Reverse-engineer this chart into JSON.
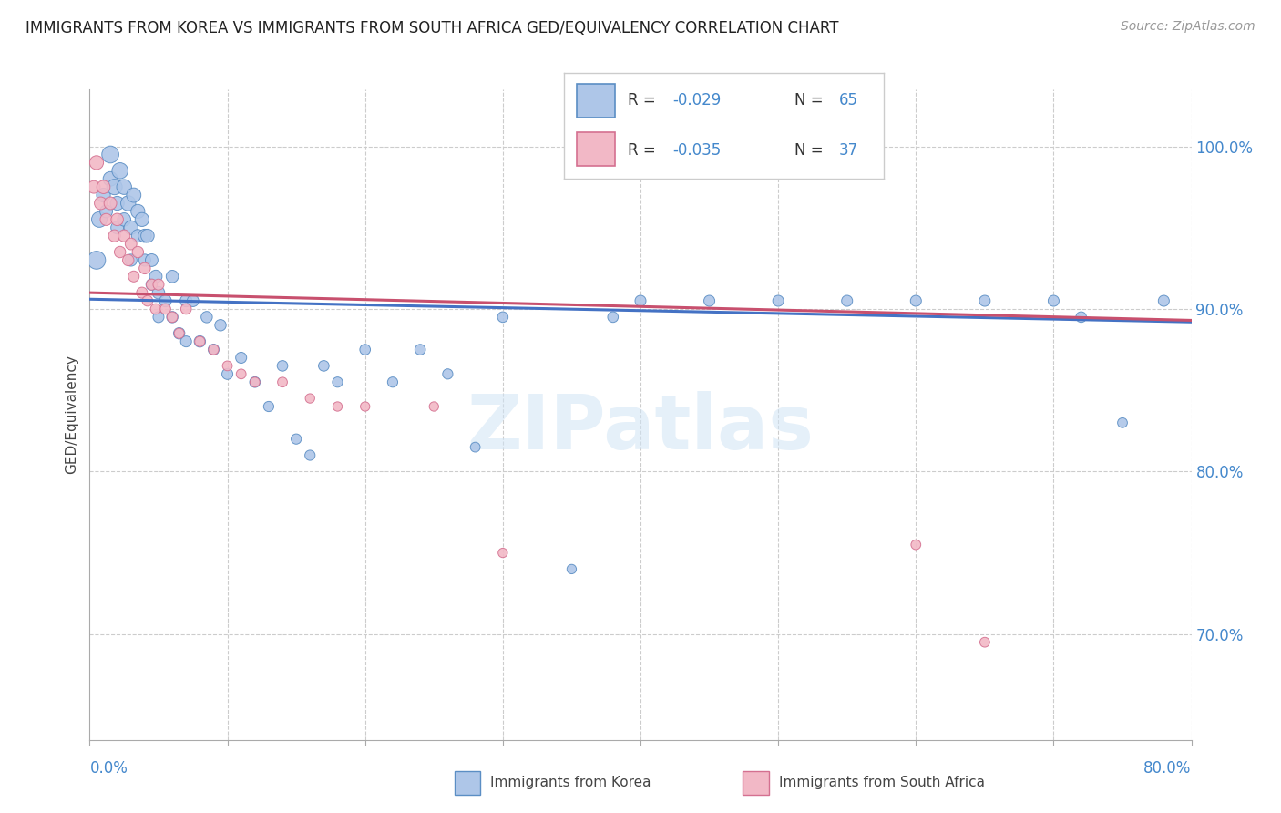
{
  "title": "IMMIGRANTS FROM KOREA VS IMMIGRANTS FROM SOUTH AFRICA GED/EQUIVALENCY CORRELATION CHART",
  "source": "Source: ZipAtlas.com",
  "ylabel": "GED/Equivalency",
  "color_korea": "#aec6e8",
  "color_korea_edge": "#5b8ec4",
  "color_korea_line": "#4472c4",
  "color_sa": "#f2b8c6",
  "color_sa_edge": "#d47090",
  "color_sa_line": "#c8506e",
  "title_color": "#222222",
  "source_color": "#999999",
  "axis_label_color": "#4488cc",
  "xlim": [
    0.0,
    0.8
  ],
  "ylim": [
    0.635,
    1.035
  ],
  "yticks": [
    0.7,
    0.8,
    0.9,
    1.0
  ],
  "xtick_positions": [
    0.0,
    0.1,
    0.2,
    0.3,
    0.4,
    0.5,
    0.6,
    0.7,
    0.8
  ],
  "grid_color": "#cccccc",
  "background_color": "#ffffff",
  "watermark": "ZIPatlas",
  "legend_r1": "-0.029",
  "legend_n1": "65",
  "legend_r2": "-0.035",
  "legend_n2": "37",
  "korea_trend_x": [
    0.0,
    0.8
  ],
  "korea_trend_y": [
    0.906,
    0.892
  ],
  "sa_trend_x": [
    0.0,
    0.8
  ],
  "sa_trend_y": [
    0.91,
    0.893
  ],
  "korea_x": [
    0.005,
    0.007,
    0.01,
    0.012,
    0.015,
    0.015,
    0.018,
    0.02,
    0.02,
    0.022,
    0.025,
    0.025,
    0.028,
    0.03,
    0.03,
    0.032,
    0.035,
    0.035,
    0.038,
    0.04,
    0.04,
    0.042,
    0.045,
    0.045,
    0.048,
    0.05,
    0.05,
    0.055,
    0.06,
    0.06,
    0.065,
    0.07,
    0.07,
    0.075,
    0.08,
    0.085,
    0.09,
    0.095,
    0.1,
    0.11,
    0.12,
    0.13,
    0.14,
    0.15,
    0.16,
    0.17,
    0.18,
    0.2,
    0.22,
    0.24,
    0.26,
    0.28,
    0.3,
    0.35,
    0.38,
    0.4,
    0.45,
    0.5,
    0.55,
    0.6,
    0.65,
    0.7,
    0.72,
    0.75,
    0.78
  ],
  "korea_y": [
    0.93,
    0.955,
    0.97,
    0.96,
    0.995,
    0.98,
    0.975,
    0.965,
    0.95,
    0.985,
    0.975,
    0.955,
    0.965,
    0.95,
    0.93,
    0.97,
    0.96,
    0.945,
    0.955,
    0.945,
    0.93,
    0.945,
    0.93,
    0.915,
    0.92,
    0.91,
    0.895,
    0.905,
    0.92,
    0.895,
    0.885,
    0.905,
    0.88,
    0.905,
    0.88,
    0.895,
    0.875,
    0.89,
    0.86,
    0.87,
    0.855,
    0.84,
    0.865,
    0.82,
    0.81,
    0.865,
    0.855,
    0.875,
    0.855,
    0.875,
    0.86,
    0.815,
    0.895,
    0.74,
    0.895,
    0.905,
    0.905,
    0.905,
    0.905,
    0.905,
    0.905,
    0.905,
    0.895,
    0.83,
    0.905
  ],
  "korea_size": [
    200,
    150,
    120,
    100,
    180,
    130,
    150,
    120,
    100,
    160,
    140,
    110,
    140,
    120,
    90,
    130,
    120,
    100,
    120,
    110,
    90,
    110,
    100,
    80,
    100,
    95,
    75,
    90,
    95,
    80,
    80,
    90,
    75,
    85,
    80,
    80,
    75,
    80,
    75,
    75,
    70,
    65,
    70,
    65,
    65,
    70,
    65,
    70,
    65,
    70,
    65,
    60,
    70,
    55,
    70,
    75,
    75,
    75,
    75,
    75,
    75,
    75,
    70,
    60,
    75
  ],
  "sa_x": [
    0.003,
    0.005,
    0.008,
    0.01,
    0.012,
    0.015,
    0.018,
    0.02,
    0.022,
    0.025,
    0.028,
    0.03,
    0.032,
    0.035,
    0.038,
    0.04,
    0.042,
    0.045,
    0.048,
    0.05,
    0.055,
    0.06,
    0.065,
    0.07,
    0.08,
    0.09,
    0.1,
    0.11,
    0.12,
    0.14,
    0.16,
    0.18,
    0.2,
    0.25,
    0.3,
    0.6,
    0.65
  ],
  "sa_y": [
    0.975,
    0.99,
    0.965,
    0.975,
    0.955,
    0.965,
    0.945,
    0.955,
    0.935,
    0.945,
    0.93,
    0.94,
    0.92,
    0.935,
    0.91,
    0.925,
    0.905,
    0.915,
    0.9,
    0.915,
    0.9,
    0.895,
    0.885,
    0.9,
    0.88,
    0.875,
    0.865,
    0.86,
    0.855,
    0.855,
    0.845,
    0.84,
    0.84,
    0.84,
    0.75,
    0.755,
    0.695
  ],
  "sa_size": [
    100,
    120,
    100,
    110,
    90,
    100,
    90,
    95,
    80,
    90,
    80,
    85,
    75,
    80,
    75,
    80,
    70,
    75,
    70,
    75,
    70,
    70,
    65,
    70,
    65,
    65,
    60,
    60,
    60,
    60,
    55,
    55,
    55,
    55,
    55,
    60,
    60
  ]
}
